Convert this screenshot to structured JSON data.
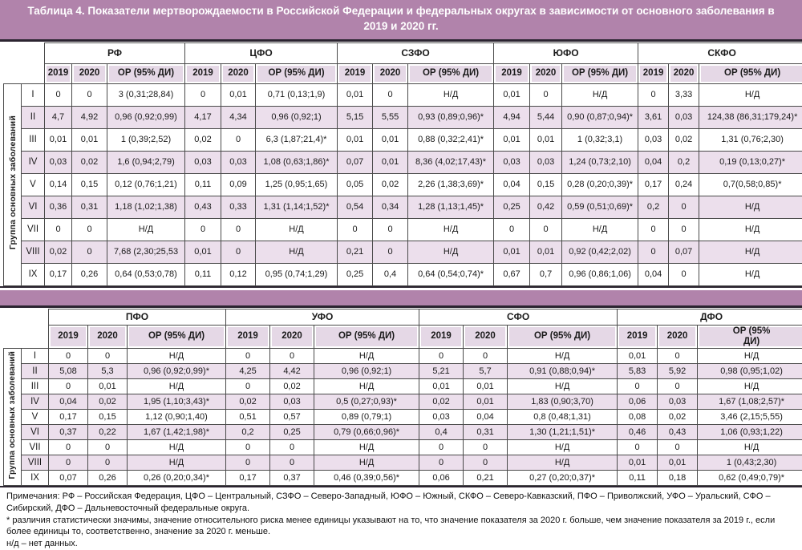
{
  "title": "Таблица 4. Показатели мертворождаемости в Российской Федерации и федеральных округах в зависимости от основного заболевания в 2019 и 2020 гг.",
  "side_label": "Группа основных заболеваний",
  "year_headers": [
    "2019",
    "2020",
    "ОР (95% ДИ)"
  ],
  "table1": {
    "districts": [
      "РФ",
      "ЦФО",
      "СЗФО",
      "ЮФО",
      "СКФО"
    ],
    "rows": [
      {
        "group": "I",
        "cells": [
          "0",
          "0",
          "3 (0,31;28,84)",
          "0",
          "0,01",
          "0,71 (0,13;1,9)",
          "0,01",
          "0",
          "Н/Д",
          "0,01",
          "0",
          "Н/Д",
          "0",
          "3,33",
          "Н/Д"
        ]
      },
      {
        "group": "II",
        "cells": [
          "4,7",
          "4,92",
          "0,96 (0,92;0,99)",
          "4,17",
          "4,34",
          "0,96 (0,92;1)",
          "5,15",
          "5,55",
          "0,93 (0,89;0,96)*",
          "4,94",
          "5,44",
          "0,90 (0,87;0,94)*",
          "3,61",
          "0,03",
          "124,38 (86,31;179,24)*"
        ]
      },
      {
        "group": "III",
        "cells": [
          "0,01",
          "0,01",
          "1 (0,39;2,52)",
          "0,02",
          "0",
          "6,3 (1,87;21,4)*",
          "0,01",
          "0,01",
          "0,88 (0,32;2,41)*",
          "0,01",
          "0,01",
          "1 (0,32;3,1)",
          "0,03",
          "0,02",
          "1,31 (0,76;2,30)"
        ]
      },
      {
        "group": "IV",
        "cells": [
          "0,03",
          "0,02",
          "1,6 (0,94;2,79)",
          "0,03",
          "0,03",
          "1,08 (0,63;1,86)*",
          "0,07",
          "0,01",
          "8,36 (4,02;17,43)*",
          "0,03",
          "0,03",
          "1,24 (0,73;2,10)",
          "0,04",
          "0,2",
          "0,19 (0,13;0,27)*"
        ]
      },
      {
        "group": "V",
        "cells": [
          "0,14",
          "0,15",
          "0,12 (0,76;1,21)",
          "0,11",
          "0,09",
          "1,25 (0,95;1,65)",
          "0,05",
          "0,02",
          "2,26 (1,38;3,69)*",
          "0,04",
          "0,15",
          "0,28 (0,20;0,39)*",
          "0,17",
          "0,24",
          "0,7(0,58;0,85)*"
        ]
      },
      {
        "group": "VI",
        "cells": [
          "0,36",
          "0,31",
          "1,18 (1,02;1,38)",
          "0,43",
          "0,33",
          "1,31 (1,14;1,52)*",
          "0,54",
          "0,34",
          "1,28 (1,13;1,45)*",
          "0,25",
          "0,42",
          "0,59 (0,51;0,69)*",
          "0,2",
          "0",
          "Н/Д"
        ]
      },
      {
        "group": "VII",
        "cells": [
          "0",
          "0",
          "Н/Д",
          "0",
          "0",
          "Н/Д",
          "0",
          "0",
          "Н/Д",
          "0",
          "0",
          "Н/Д",
          "0",
          "0",
          "Н/Д"
        ]
      },
      {
        "group": "VIII",
        "cells": [
          "0,02",
          "0",
          "7,68 (2,30;25,53",
          "0,01",
          "0",
          "Н/Д",
          "0,21",
          "0",
          "Н/Д",
          "0,01",
          "0,01",
          "0,92 (0,42;2,02)",
          "0",
          "0,07",
          "Н/Д"
        ]
      },
      {
        "group": "IX",
        "cells": [
          "0,17",
          "0,26",
          "0,64 (0,53;0,78)",
          "0,11",
          "0,12",
          "0,95 (0,74;1,29)",
          "0,25",
          "0,4",
          "0,64 (0,54;0,74)*",
          "0,67",
          "0,7",
          "0,96 (0,86;1,06)",
          "0,04",
          "0",
          "Н/Д"
        ]
      }
    ]
  },
  "table2": {
    "districts": [
      "ПФО",
      "УФО",
      "СФО",
      "ДФО"
    ],
    "rows": [
      {
        "group": "I",
        "cells": [
          "0",
          "0",
          "Н/Д",
          "0",
          "0",
          "Н/Д",
          "0",
          "0",
          "Н/Д",
          "0,01",
          "0",
          "Н/Д"
        ]
      },
      {
        "group": "II",
        "cells": [
          "5,08",
          "5,3",
          "0,96 (0,92;0,99)*",
          "4,25",
          "4,42",
          "0,96 (0,92;1)",
          "5,21",
          "5,7",
          "0,91 (0,88;0,94)*",
          "5,83",
          "5,92",
          "0,98 (0,95;1,02)"
        ]
      },
      {
        "group": "III",
        "cells": [
          "0",
          "0,01",
          "Н/Д",
          "0",
          "0,02",
          "Н/Д",
          "0,01",
          "0,01",
          "Н/Д",
          "0",
          "0",
          "Н/Д"
        ]
      },
      {
        "group": "IV",
        "cells": [
          "0,04",
          "0,02",
          "1,95 (1,10;3,43)*",
          "0,02",
          "0,03",
          "0,5 (0,27;0,93)*",
          "0,02",
          "0,01",
          "1,83 (0,90;3,70)",
          "0,06",
          "0,03",
          "1,67 (1,08;2,57)*"
        ]
      },
      {
        "group": "V",
        "cells": [
          "0,17",
          "0,15",
          "1,12 (0,90;1,40)",
          "0,51",
          "0,57",
          "0,89 (0,79;1)",
          "0,03",
          "0,04",
          "0,8 (0,48;1,31)",
          "0,08",
          "0,02",
          "3,46 (2,15;5,55)"
        ]
      },
      {
        "group": "VI",
        "cells": [
          "0,37",
          "0,22",
          "1,67 (1,42;1,98)*",
          "0,2",
          "0,25",
          "0,79 (0,66;0,96)*",
          "0,4",
          "0,31",
          "1,30 (1,21;1,51)*",
          "0,46",
          "0,43",
          "1,06 (0,93;1,22)"
        ]
      },
      {
        "group": "VII",
        "cells": [
          "0",
          "0",
          "Н/Д",
          "0",
          "0",
          "Н/Д",
          "0",
          "0",
          "Н/Д",
          "0",
          "0",
          "Н/Д"
        ]
      },
      {
        "group": "VIII",
        "cells": [
          "0",
          "0",
          "Н/Д",
          "0",
          "0",
          "Н/Д",
          "0",
          "0",
          "Н/Д",
          "0,01",
          "0,01",
          "1 (0,43;2,30)"
        ]
      },
      {
        "group": "IX",
        "cells": [
          "0,07",
          "0,26",
          "0,26 (0,20;0,34)*",
          "0,17",
          "0,37",
          "0,46 (0,39;0,56)*",
          "0,06",
          "0,21",
          "0,27 (0,20;0,37)*",
          "0,11",
          "0,18",
          "0,62 (0,49;0,79)*"
        ]
      }
    ]
  },
  "notes": {
    "note1": "Примечания: РФ – Российская Федерация, ЦФО – Центральный, СЗФО – Северо-Западный, ЮФО – Южный, СКФО – Северо-Кавказский, ПФО – Приволжский, УФО – Уральский, СФО – Сибирский, ДФО – Дальневосточный федеральные округа.",
    "note2": "* различия статистически значимы, значение относительного риска менее единицы указывают на то, что значение показателя за 2020 г. больше, чем значение показателя за 2019 г., если более единицы то, соответственно, значение за 2020 г. меньше.",
    "note3": "н/д – нет данных."
  },
  "colors": {
    "title_bar": "#b183ab",
    "header_cell": "#e5d8e6",
    "row_shade": "#ecdfec",
    "rule": "#2b2430",
    "border": "#4a4a4a"
  }
}
